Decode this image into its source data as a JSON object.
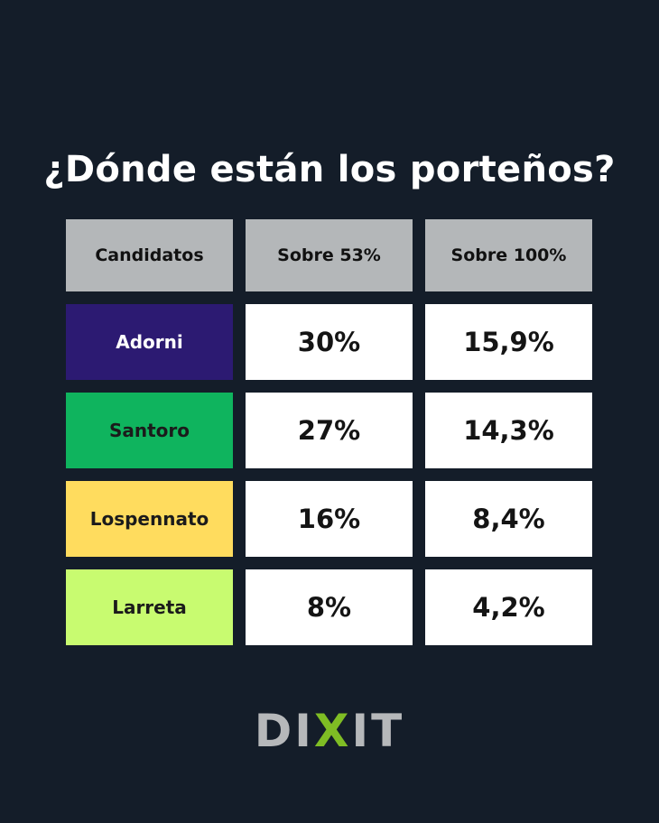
{
  "title": "¿Dónde están los porteños?",
  "brand": {
    "part1": "DI",
    "part2": "X",
    "part3": "IT",
    "accent": "#7fbd24"
  },
  "chart_data": {
    "type": "table",
    "title": "¿Dónde están los porteños?",
    "columns": [
      "Candidatos",
      "Sobre 53%",
      "Sobre 100%"
    ],
    "rows": [
      {
        "candidate": "Adorni",
        "color": "#2c1a72",
        "text_color": "#ffffff",
        "sobre_53": "30%",
        "sobre_100": "15,9%"
      },
      {
        "candidate": "Santoro",
        "color": "#0fb45e",
        "text_color": "#1b1b1b",
        "sobre_53": "27%",
        "sobre_100": "14,3%"
      },
      {
        "candidate": "Lospennato",
        "color": "#ffdc5e",
        "text_color": "#1b1b1b",
        "sobre_53": "16%",
        "sobre_100": "8,4%"
      },
      {
        "candidate": "Larreta",
        "color": "#c8fb70",
        "text_color": "#1b1b1b",
        "sobre_53": "8%",
        "sobre_100": "4,2%"
      }
    ]
  }
}
